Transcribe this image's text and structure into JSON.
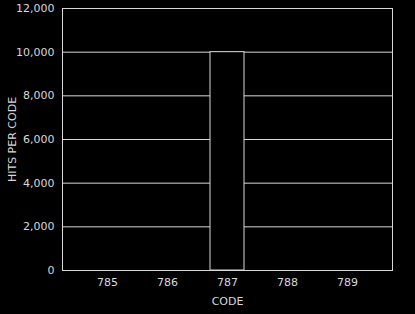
{
  "chart_data": {
    "type": "bar",
    "xlabel": "CODE",
    "ylabel": "HITS PER CODE",
    "categories": [
      "785",
      "786",
      "787",
      "788",
      "789"
    ],
    "values": [
      0,
      0,
      10000,
      0,
      0
    ],
    "color": "#000000",
    "ylim": [
      0,
      12000
    ],
    "yticks": [
      0,
      2000,
      4000,
      6000,
      8000,
      10000,
      12000
    ],
    "grid": true
  }
}
